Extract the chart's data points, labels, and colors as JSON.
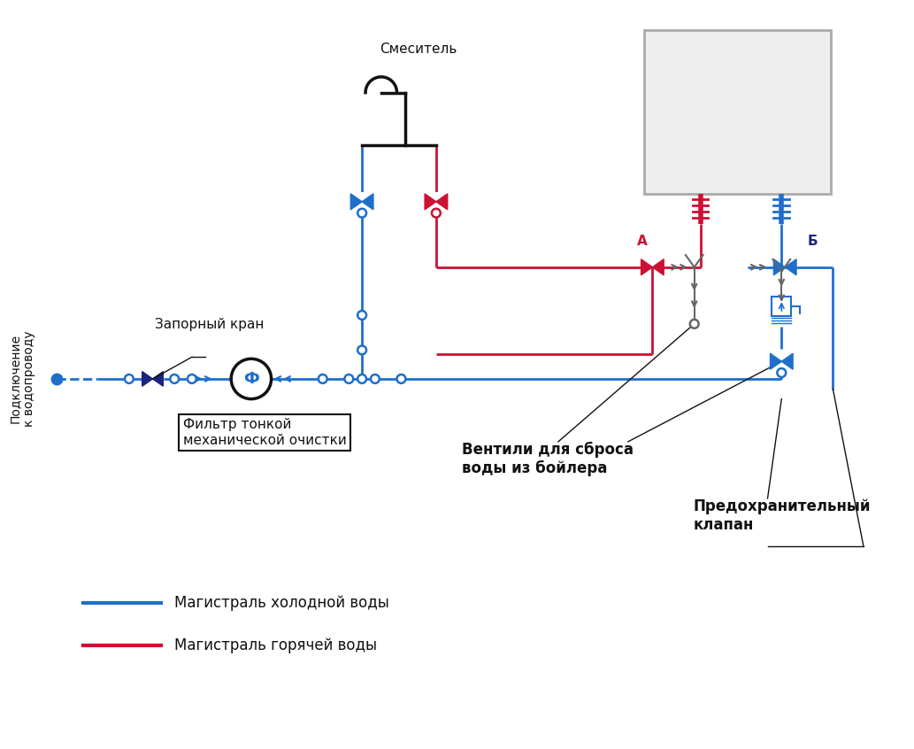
{
  "bg_color": "#ffffff",
  "cold_color": "#1e6fcc",
  "hot_color": "#cc1133",
  "black_color": "#111111",
  "gray_color": "#666666",
  "dark_blue": "#1a237e",
  "legend_cold": "Магистраль холодной воды",
  "legend_hot": "Магистраль горячей воды",
  "label_mixer": "Смеситель",
  "label_valve": "Запорный кран",
  "label_filter": "Фильтр тонкой\nмеханической очистки",
  "label_vent": "Вентили для сброса\nводы из бойлера",
  "label_safety": "Предохранительный\nклапан",
  "label_connect": "Подключение\nк водопроводу",
  "label_A": "А",
  "label_B": "Б"
}
